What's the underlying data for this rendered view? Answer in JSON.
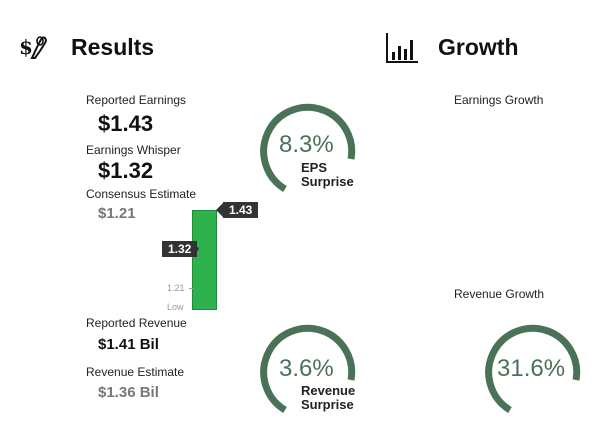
{
  "results": {
    "title": "Results",
    "icon": "money-hand-icon",
    "reported_earnings_label": "Reported Earnings",
    "reported_earnings_value": "$1.43",
    "whisper_label": "Earnings Whisper",
    "whisper_value": "$1.32",
    "consensus_label": "Consensus Estimate",
    "consensus_value": "$1.21",
    "bar_chart": {
      "reported_tag": "1.43",
      "whisper_tag": "1.32",
      "tick_value": "1.21",
      "tick_low": "Low",
      "bar_color": "#2eb24e"
    },
    "eps_surprise": {
      "value": "8.3%",
      "label_line1": "EPS",
      "label_line2": "Surprise",
      "ring_color": "#4a7257"
    },
    "reported_revenue_label": "Reported Revenue",
    "reported_revenue_value": "$1.41 Bil",
    "revenue_estimate_label": "Revenue Estimate",
    "revenue_estimate_value": "$1.36 Bil",
    "revenue_surprise": {
      "value": "3.6%",
      "label_line1": "Revenue",
      "label_line2": "Surprise",
      "ring_color": "#4a7257"
    }
  },
  "growth": {
    "title": "Growth",
    "icon": "bar-chart-icon",
    "earnings_growth_label": "Earnings Growth",
    "revenue_growth_label": "Revenue Growth",
    "revenue_growth_value": "31.6%",
    "ring_color": "#4a7257"
  }
}
